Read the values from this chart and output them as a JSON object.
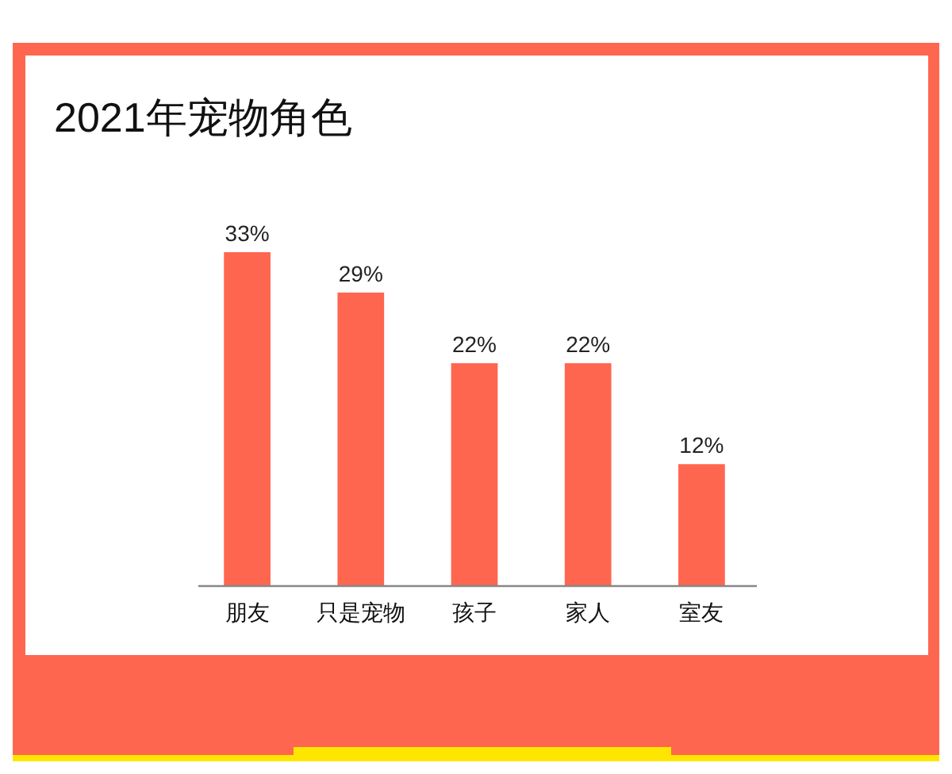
{
  "chart_data": {
    "type": "bar",
    "title": "2021年宠物角色",
    "categories": [
      "朋友",
      "只是宠物",
      "孩子",
      "家人",
      "室友"
    ],
    "values": [
      33,
      29,
      22,
      22,
      12
    ],
    "value_labels": [
      "33%",
      "29%",
      "22%",
      "22%",
      "12%"
    ],
    "color": "#ff6650"
  }
}
